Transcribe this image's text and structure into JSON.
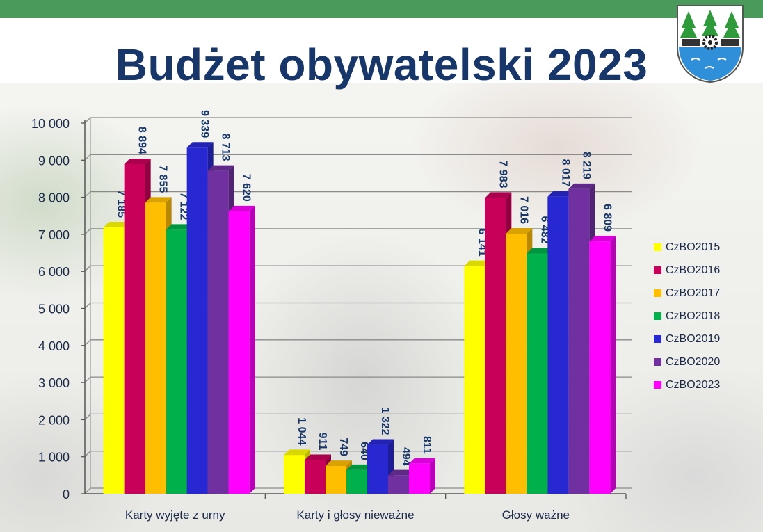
{
  "title": "Budżet obywatelski 2023",
  "chart_data": {
    "type": "bar",
    "categories": [
      "Karty wyjęte z urny",
      "Karty i głosy nieważne",
      "Głosy ważne"
    ],
    "series": [
      {
        "name": "CzBO2015",
        "color": "#ffff00",
        "values": [
          7185,
          1044,
          6141
        ]
      },
      {
        "name": "CzBO2016",
        "color": "#c8005a",
        "values": [
          8894,
          911,
          7983
        ]
      },
      {
        "name": "CzBO2017",
        "color": "#ffbe00",
        "values": [
          7855,
          749,
          7016
        ]
      },
      {
        "name": "CzBO2018",
        "color": "#00b04a",
        "values": [
          7122,
          640,
          6482
        ]
      },
      {
        "name": "CzBO2019",
        "color": "#2828d2",
        "values": [
          9339,
          1322,
          8017
        ]
      },
      {
        "name": "CzBO2020",
        "color": "#7030a0",
        "values": [
          8713,
          494,
          8219
        ]
      },
      {
        "name": "CzBO2023",
        "color": "#ff00ff",
        "values": [
          7620,
          811,
          6809
        ]
      }
    ],
    "data_labels": [
      [
        "7 185",
        "1 044",
        "6 141"
      ],
      [
        "8 894",
        "911",
        "7 983"
      ],
      [
        "7 855",
        "749",
        "7 016"
      ],
      [
        "7 122",
        "640",
        "6 482"
      ],
      [
        "9 339",
        "1 322",
        "8 017"
      ],
      [
        "8 713",
        "494",
        "8 219"
      ],
      [
        "7 620",
        "811",
        "6 809"
      ]
    ],
    "y_ticks": [
      "0",
      "1 000",
      "2 000",
      "3 000",
      "4 000",
      "5 000",
      "6 000",
      "7 000",
      "8 000",
      "9 000",
      "10 000"
    ],
    "ylim": [
      0,
      10000
    ],
    "grid": true,
    "legend_position": "right",
    "style": "3d-column"
  }
}
